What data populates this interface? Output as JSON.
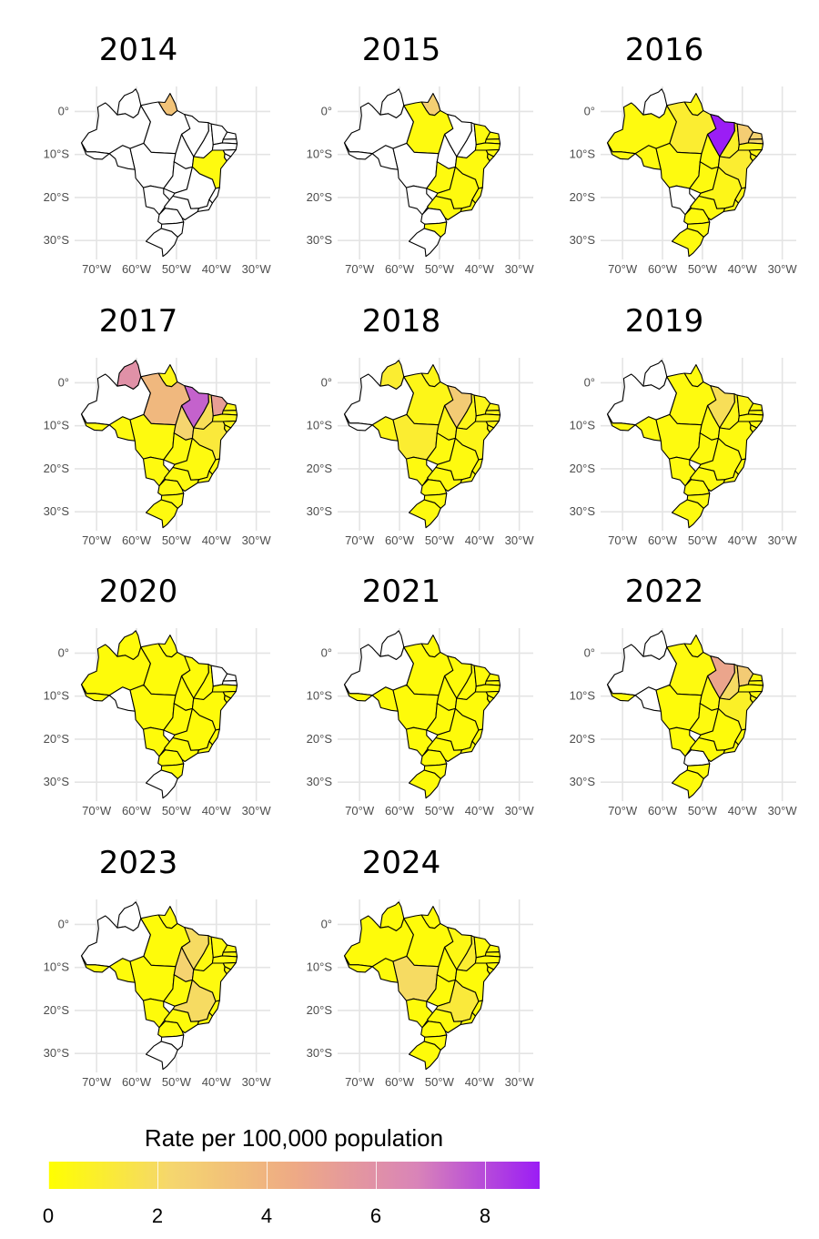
{
  "maps": [
    {
      "title": "2014",
      "states": {
        "RR": 0,
        "AP": 3.2,
        "AM": 0,
        "PA": 0,
        "AC": 0,
        "RO": 0,
        "MT": 0,
        "TO": 0,
        "MA": 0,
        "PI": 0,
        "CE": 0,
        "RN": 0,
        "PB": 0,
        "PE": 0,
        "AL": 0,
        "SE": 0,
        "BA": 0.3,
        "MS": 0,
        "GO": 0,
        "MG": 0,
        "ES": 0,
        "RJ": 0,
        "SP": 0,
        "PR": 0,
        "SC": 0,
        "RS": 0
      }
    },
    {
      "title": "2015",
      "states": {
        "RR": 0,
        "AP": 2.6,
        "AM": 0,
        "PA": 0.3,
        "AC": 0,
        "RO": 0,
        "MT": 0,
        "TO": 0,
        "MA": 0,
        "PI": 0,
        "CE": 0.3,
        "RN": 0.3,
        "PB": 0.3,
        "PE": 0.3,
        "AL": 0.3,
        "SE": 0.3,
        "BA": 0.3,
        "MS": 0,
        "GO": 0.3,
        "MG": 0.3,
        "ES": 0.3,
        "RJ": 0.3,
        "SP": 0.3,
        "PR": 0,
        "SC": 0.3,
        "RS": 0
      }
    },
    {
      "title": "2016",
      "states": {
        "RR": 0,
        "AP": 0.4,
        "AM": 0.3,
        "PA": 1.0,
        "AC": 0.3,
        "RO": 0.3,
        "MT": 0.3,
        "TO": 0.3,
        "MA": 9.0,
        "PI": 0.8,
        "CE": 2.7,
        "RN": 2.4,
        "PB": 2.2,
        "PE": 0.5,
        "AL": 0.5,
        "SE": 0.5,
        "BA": 1.0,
        "MS": 0,
        "GO": 0.3,
        "MG": 0.5,
        "ES": 0.5,
        "RJ": 0.5,
        "SP": 0.3,
        "PR": 0.3,
        "SC": 0.3,
        "RS": 0.3
      }
    },
    {
      "title": "2017",
      "states": {
        "RR": 6.0,
        "AP": 0.5,
        "AM": 0,
        "PA": 3.8,
        "AC": 0.3,
        "RO": 0.3,
        "MT": 0.3,
        "TO": 2.3,
        "MA": 7.5,
        "PI": 1.8,
        "CE": 5.2,
        "RN": 0.5,
        "PB": 0.5,
        "PE": 0.5,
        "AL": 0.5,
        "SE": 0.5,
        "BA": 1.2,
        "MS": 0.3,
        "GO": 0.3,
        "MG": 0.3,
        "ES": 0.3,
        "RJ": 0.3,
        "SP": 0.3,
        "PR": 0.3,
        "SC": 0.3,
        "RS": 0.3
      }
    },
    {
      "title": "2018",
      "states": {
        "RR": 1.0,
        "AP": 0.5,
        "AM": 0,
        "PA": 0.5,
        "AC": 0,
        "RO": 0.5,
        "MT": 1.0,
        "TO": 0.5,
        "MA": 2.8,
        "PI": 0.5,
        "CE": 0.5,
        "RN": 0.5,
        "PB": 0.5,
        "PE": 0.5,
        "AL": 0.5,
        "SE": 0.5,
        "BA": 0.5,
        "MS": 0.3,
        "GO": 0.3,
        "MG": 0.3,
        "ES": 0.3,
        "RJ": 0.3,
        "SP": 0.3,
        "PR": 0.3,
        "SC": 0.3,
        "RS": 0.3
      }
    },
    {
      "title": "2019",
      "states": {
        "RR": 0,
        "AP": 0.3,
        "AM": 0,
        "PA": 0.3,
        "AC": 0.3,
        "RO": 0.3,
        "MT": 0.3,
        "TO": 0.3,
        "MA": 1.8,
        "PI": 0.5,
        "CE": 0.5,
        "RN": 0.3,
        "PB": 0.3,
        "PE": 0.3,
        "AL": 0.3,
        "SE": 0.3,
        "BA": 0.3,
        "MS": 0.3,
        "GO": 0.3,
        "MG": 0.3,
        "ES": 0.3,
        "RJ": 0.3,
        "SP": 0.3,
        "PR": 0.3,
        "SC": 0.3,
        "RS": 0.3
      }
    },
    {
      "title": "2020",
      "states": {
        "RR": 0.2,
        "AP": 0.2,
        "AM": 0.2,
        "PA": 0.2,
        "AC": 0.2,
        "RO": 0,
        "MT": 0.2,
        "TO": 0.2,
        "MA": 0.2,
        "PI": 0.2,
        "CE": 0,
        "RN": 0,
        "PB": 0,
        "PE": 0.2,
        "AL": 0.2,
        "SE": 0.2,
        "BA": 0.2,
        "MS": 0.2,
        "GO": 0.2,
        "MG": 0.2,
        "ES": 0.2,
        "RJ": 0.2,
        "SP": 0.2,
        "PR": 0.2,
        "SC": 0.2,
        "RS": 0
      }
    },
    {
      "title": "2021",
      "states": {
        "RR": 0,
        "AP": 0.2,
        "AM": 0,
        "PA": 0.2,
        "AC": 0.2,
        "RO": 0.2,
        "MT": 0.2,
        "TO": 0.2,
        "MA": 0.2,
        "PI": 0.2,
        "CE": 0.2,
        "RN": 0.2,
        "PB": 0.2,
        "PE": 0.2,
        "AL": 0.2,
        "SE": 0.2,
        "BA": 0.2,
        "MS": 0.2,
        "GO": 0.2,
        "MG": 0.2,
        "ES": 0.2,
        "RJ": 0.2,
        "SP": 0.2,
        "PR": 0.2,
        "SC": 0.2,
        "RS": 0.2
      }
    },
    {
      "title": "2022",
      "states": {
        "RR": 0,
        "AP": 0.2,
        "AM": 0,
        "PA": 0.3,
        "AC": 0.2,
        "RO": 0,
        "MT": 0.2,
        "TO": 0.3,
        "MA": 4.8,
        "PI": 2.0,
        "CE": 2.8,
        "RN": 0.3,
        "PB": 0.3,
        "PE": 0.3,
        "AL": 0.3,
        "SE": 0.3,
        "BA": 0.8,
        "MS": 0.2,
        "GO": 0.3,
        "MG": 0.2,
        "ES": 0.2,
        "RJ": 0.2,
        "SP": 0.2,
        "PR": 0,
        "SC": 0.2,
        "RS": 0.2
      }
    },
    {
      "title": "2023",
      "states": {
        "RR": 0,
        "AP": 0.2,
        "AM": 0,
        "PA": 0.2,
        "AC": 0.2,
        "RO": 0.2,
        "MT": 0.2,
        "TO": 2.4,
        "MA": 2.0,
        "PI": 0.3,
        "CE": 0.3,
        "RN": 0.3,
        "PB": 0.3,
        "PE": 0.3,
        "AL": 0.3,
        "SE": 0.3,
        "BA": 0.3,
        "MS": 0.2,
        "GO": 0.2,
        "MG": 2.0,
        "ES": 0.2,
        "RJ": 0.2,
        "SP": 0.2,
        "PR": 0.2,
        "SC": 0,
        "RS": 0
      }
    },
    {
      "title": "2024",
      "states": {
        "RR": 0.2,
        "AP": 0.2,
        "AM": 0.2,
        "PA": 0.2,
        "AC": 0.2,
        "RO": 0.2,
        "MT": 2.0,
        "TO": 0.2,
        "MA": 0.4,
        "PI": 1.0,
        "CE": 0.2,
        "RN": 0.2,
        "PB": 0.2,
        "PE": 0.2,
        "AL": 0.2,
        "SE": 0.2,
        "BA": 0.2,
        "MS": 0.2,
        "GO": 0.2,
        "MG": 1.2,
        "ES": 0.2,
        "RJ": 0.2,
        "SP": 0.2,
        "PR": 0.2,
        "SC": 0.2,
        "RS": 0.2
      }
    }
  ],
  "axes": {
    "lat_labels": [
      "0°",
      "10°S",
      "20°S",
      "30°S"
    ],
    "lon_labels": [
      "70°W",
      "60°W",
      "50°W",
      "40°W",
      "30°W"
    ]
  },
  "legend": {
    "title": "Rate per 100,000 population",
    "ticks": [
      "0",
      "2",
      "4",
      "6",
      "8"
    ],
    "tick_values": [
      0,
      2,
      4,
      6,
      8
    ],
    "range": [
      0,
      9
    ],
    "colors": [
      "#ffff00",
      "#f5d66e",
      "#eeaa85",
      "#d984b8",
      "#9b1df5"
    ],
    "missing_color": "#ffffff"
  }
}
